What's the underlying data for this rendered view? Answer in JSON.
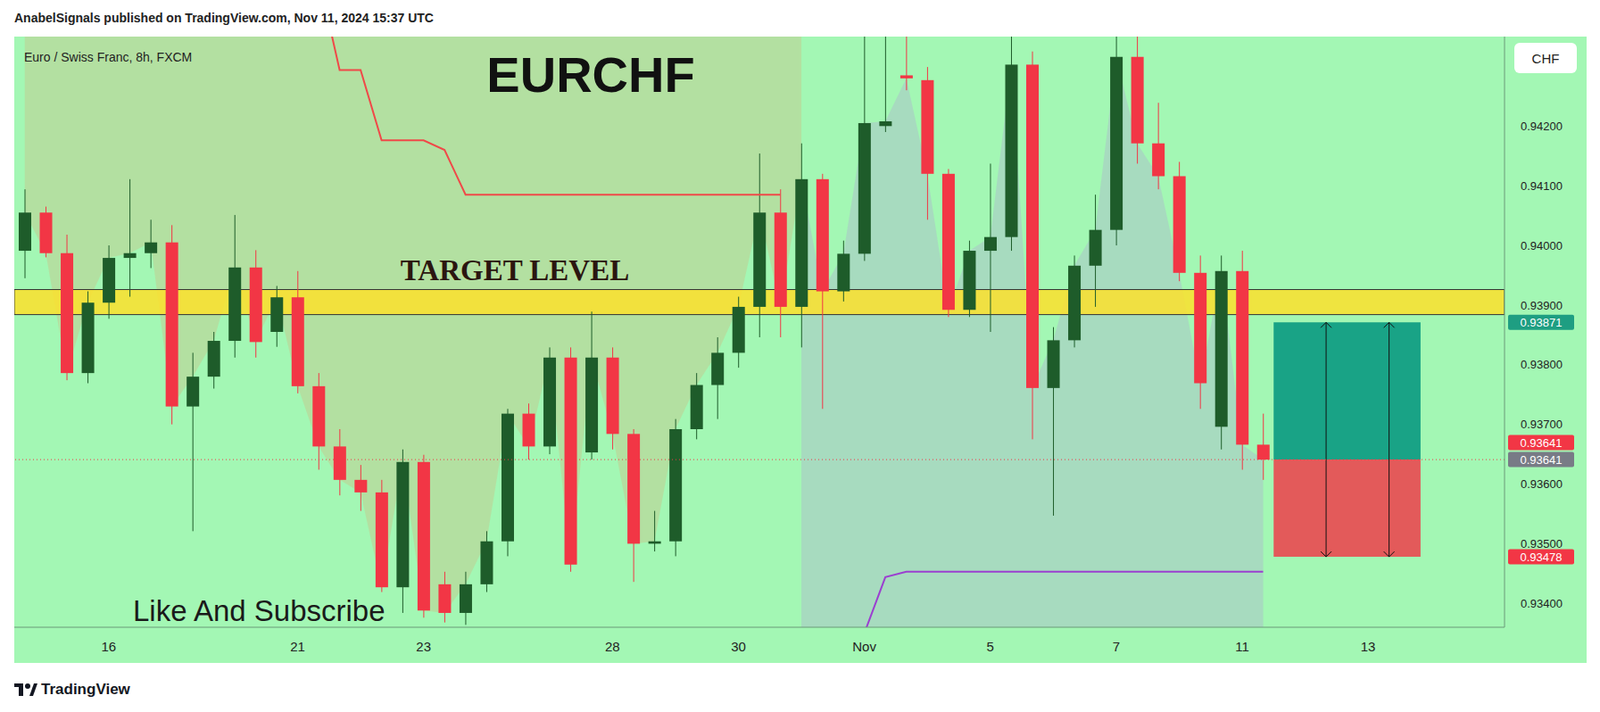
{
  "chart_data": {
    "type": "candlestick",
    "header": "AnabelSignals published on TradingView.com, Nov 11, 2024 15:37 UTC",
    "title": "EURCHF",
    "subtitle": "Euro / Swiss Franc, 8h, FXCM",
    "currency": "CHF",
    "annotation": "Like And Subscribe",
    "footer": "TradingView",
    "categories": [
      null,
      null,
      null,
      null,
      "16",
      null,
      null,
      null,
      null,
      null,
      null,
      null,
      null,
      "21",
      null,
      null,
      null,
      null,
      null,
      "23",
      null,
      null,
      null,
      null,
      null,
      null,
      null,
      null,
      "28",
      null,
      null,
      null,
      null,
      null,
      "30",
      null,
      null,
      null,
      null,
      null,
      "Nov",
      null,
      null,
      null,
      null,
      null,
      "5",
      null,
      null,
      null,
      null,
      null,
      "7",
      null,
      null,
      null,
      null,
      null,
      "11",
      null,
      null,
      null,
      null,
      null,
      "13",
      null,
      null,
      null,
      null,
      null,
      null
    ],
    "candles": {
      "open": [
        0.93991,
        0.94055,
        0.93987,
        0.93786,
        0.93904,
        0.93979,
        0.93987,
        0.94005,
        0.9373,
        0.9378,
        0.9384,
        0.93963,
        0.93855,
        0.93913,
        0.93764,
        0.93663,
        0.93607,
        0.93586,
        0.93427,
        0.93637,
        0.93432,
        0.93384,
        0.93432,
        0.93504,
        0.93718,
        0.93663,
        0.93812,
        0.93653,
        0.93812,
        0.93684,
        0.935,
        0.93504,
        0.93692,
        0.93766,
        0.9382,
        0.93897,
        0.94055,
        0.93897,
        0.94111,
        0.93923,
        0.93986,
        0.942,
        0.94285,
        0.94277,
        0.9412,
        0.93892,
        0.93991,
        0.94014,
        0.94303,
        0.93761,
        0.93841,
        0.93966,
        0.94026,
        0.94316,
        0.94171,
        0.94116,
        0.93954,
        0.93696,
        0.93957,
        0.93666,
        null,
        null,
        null,
        null,
        null,
        null,
        null,
        null,
        null,
        null,
        null
      ],
      "high": [
        0.94094,
        0.94065,
        0.94018,
        0.93923,
        0.94,
        0.94111,
        0.94043,
        0.94034,
        0.9382,
        0.93855,
        0.94051,
        0.93992,
        0.93932,
        0.93957,
        0.93786,
        0.93692,
        0.93632,
        0.93607,
        0.93658,
        0.93649,
        0.93453,
        0.93453,
        0.93521,
        0.93726,
        0.93735,
        0.93829,
        0.93829,
        0.93889,
        0.93829,
        0.93692,
        0.93555,
        0.93709,
        0.93786,
        0.93846,
        0.93914,
        0.94154,
        0.94094,
        0.94171,
        0.9412,
        0.94008,
        0.9436,
        0.9436,
        0.9436,
        0.94299,
        0.94128,
        0.94008,
        0.94137,
        0.9436,
        0.94325,
        0.93863,
        0.93983,
        0.94085,
        0.9436,
        0.9436,
        0.94239,
        0.9414,
        0.93983,
        0.93983,
        0.93991,
        0.93718,
        null,
        null,
        null,
        null,
        null,
        null,
        null,
        null,
        null,
        null,
        null
      ],
      "low": [
        0.93945,
        0.9398,
        0.93774,
        0.93769,
        0.93877,
        0.93914,
        0.93962,
        0.937,
        0.93521,
        0.9376,
        0.93812,
        0.93812,
        0.9383,
        0.93752,
        0.93624,
        0.93581,
        0.93555,
        0.93419,
        0.93384,
        0.93376,
        0.93368,
        0.93364,
        0.93419,
        0.93479,
        0.93641,
        0.9365,
        0.93453,
        0.93641,
        0.93658,
        0.93436,
        0.93487,
        0.93479,
        0.93675,
        0.93709,
        0.93795,
        0.93846,
        0.93846,
        0.93829,
        0.93726,
        0.93906,
        0.93974,
        0.9419,
        0.9426,
        0.94043,
        0.9388,
        0.9388,
        0.93855,
        0.93991,
        0.93675,
        0.93547,
        0.93829,
        0.93897,
        0.94,
        0.94137,
        0.94094,
        0.9394,
        0.93726,
        0.93658,
        0.93624,
        0.93607,
        null,
        null,
        null,
        null,
        null,
        null,
        null,
        null,
        null,
        null,
        null
      ],
      "close": [
        0.94055,
        0.93987,
        0.93786,
        0.93904,
        0.93979,
        0.93987,
        0.94005,
        0.9373,
        0.9378,
        0.9384,
        0.93963,
        0.93838,
        0.93913,
        0.93764,
        0.93663,
        0.93607,
        0.93586,
        0.93427,
        0.93637,
        0.93388,
        0.93384,
        0.93432,
        0.93504,
        0.93718,
        0.93663,
        0.93812,
        0.93465,
        0.93812,
        0.93684,
        0.935,
        0.93504,
        0.93692,
        0.93766,
        0.9382,
        0.93897,
        0.94055,
        0.93897,
        0.94111,
        0.93923,
        0.93986,
        0.94205,
        0.94208,
        0.9428,
        0.9412,
        0.93892,
        0.93991,
        0.94014,
        0.94303,
        0.93761,
        0.93841,
        0.93966,
        0.94026,
        0.94316,
        0.94171,
        0.94116,
        0.93954,
        0.93769,
        0.93957,
        0.93666,
        0.93641,
        null,
        null,
        null,
        null,
        null,
        null,
        null,
        null,
        null,
        null,
        null
      ],
      "colors": [
        "#1e5c2a",
        "#f23645"
      ]
    },
    "upper_shade": {
      "color": "#b6dc9e",
      "values": [
        0.94055,
        0.93987,
        0.93786,
        0.93904,
        0.93979,
        0.93987,
        0.94005,
        0.9373,
        0.9378,
        0.9384,
        0.93963,
        0.93838,
        0.93913,
        0.93764,
        0.93663,
        0.93607,
        0.93586,
        0.93427,
        0.93637,
        0.93388,
        0.93384,
        0.93432,
        0.93504,
        0.93718,
        0.93663,
        0.93812,
        0.93465,
        0.93812,
        0.93684,
        0.935,
        0.93504,
        0.93692,
        0.93766,
        0.9382,
        0.93897,
        0.94055,
        0.93897,
        0.94111,
        null,
        null,
        null,
        null,
        null,
        null,
        null,
        null,
        null,
        null,
        null,
        null,
        null,
        null,
        null,
        null,
        null,
        null,
        null,
        null,
        null,
        null,
        null,
        null,
        null,
        null,
        null,
        null,
        null,
        null,
        null,
        null,
        null
      ]
    },
    "lower_shade": {
      "color": "#a8d6c1",
      "values": [
        null,
        null,
        null,
        null,
        null,
        null,
        null,
        null,
        null,
        null,
        null,
        null,
        null,
        null,
        null,
        null,
        null,
        null,
        null,
        null,
        null,
        null,
        null,
        null,
        null,
        null,
        null,
        null,
        null,
        null,
        null,
        null,
        null,
        null,
        null,
        null,
        null,
        0.94111,
        0.93923,
        0.93986,
        0.94205,
        0.94208,
        0.9428,
        0.9412,
        0.93892,
        0.93991,
        0.94014,
        0.94303,
        0.93761,
        0.93841,
        0.93966,
        0.94026,
        0.94316,
        0.94171,
        0.94116,
        0.93954,
        0.93769,
        0.93957,
        0.93666,
        0.93641,
        null,
        null,
        null,
        null,
        null,
        null,
        null,
        null,
        null,
        null,
        null
      ]
    },
    "upper_line": {
      "color": "#f04848",
      "values": [
        null,
        null,
        null,
        null,
        null,
        null,
        null,
        null,
        null,
        null,
        null,
        null,
        null,
        null,
        0.9445,
        0.94294,
        0.94294,
        0.94176,
        0.94176,
        0.94176,
        0.9416,
        0.94085,
        0.94085,
        0.94085,
        0.94085,
        0.94085,
        0.94085,
        0.94085,
        0.94085,
        0.94085,
        0.94085,
        0.94085,
        0.94085,
        0.94085,
        0.94085,
        0.94085,
        0.94085,
        null,
        null,
        null,
        null,
        null,
        null,
        null,
        null,
        null,
        null,
        null,
        null,
        null,
        null,
        null,
        null,
        null,
        null,
        null,
        null,
        null,
        null,
        null,
        null,
        null,
        null,
        null,
        null,
        null,
        null,
        null,
        null,
        null,
        null
      ]
    },
    "lower_line": {
      "color": "#9b3fd0",
      "values": [
        null,
        null,
        null,
        null,
        null,
        null,
        null,
        null,
        null,
        null,
        null,
        null,
        null,
        null,
        null,
        null,
        null,
        null,
        null,
        null,
        null,
        null,
        null,
        null,
        null,
        null,
        null,
        null,
        null,
        null,
        null,
        null,
        null,
        null,
        null,
        null,
        null,
        null,
        null,
        null,
        0.9335,
        0.93444,
        0.93453,
        0.93453,
        0.93453,
        0.93453,
        0.93453,
        0.93453,
        0.93453,
        0.93453,
        0.93453,
        0.93453,
        0.93453,
        0.93453,
        0.93453,
        0.93453,
        0.93453,
        0.93453,
        0.93453,
        0.93453,
        null,
        null,
        null,
        null,
        null,
        null,
        null,
        null,
        null,
        null,
        null
      ]
    },
    "target_level": {
      "label": "TARGET LEVEL",
      "low": 0.93884,
      "high": 0.93926,
      "color": "#fde02c"
    },
    "position": {
      "take_profit": 0.93871,
      "entry": 0.93641,
      "stop_loss": 0.93478,
      "last_price": 0.93641
    },
    "ylim": [
      0.9336,
      0.9435
    ],
    "yticks": [
      {
        "value": 0.934,
        "label": "0.93400"
      },
      {
        "value": 0.935,
        "label": "0.93500"
      },
      {
        "value": 0.936,
        "label": "0.93600"
      },
      {
        "value": 0.937,
        "label": "0.93700"
      },
      {
        "value": 0.938,
        "label": "0.93800"
      },
      {
        "value": 0.939,
        "label": "0.93900"
      },
      {
        "value": 0.94,
        "label": "0.94000"
      },
      {
        "value": 0.941,
        "label": "0.94100"
      },
      {
        "value": 0.942,
        "label": "0.94200"
      }
    ],
    "grid": false
  }
}
